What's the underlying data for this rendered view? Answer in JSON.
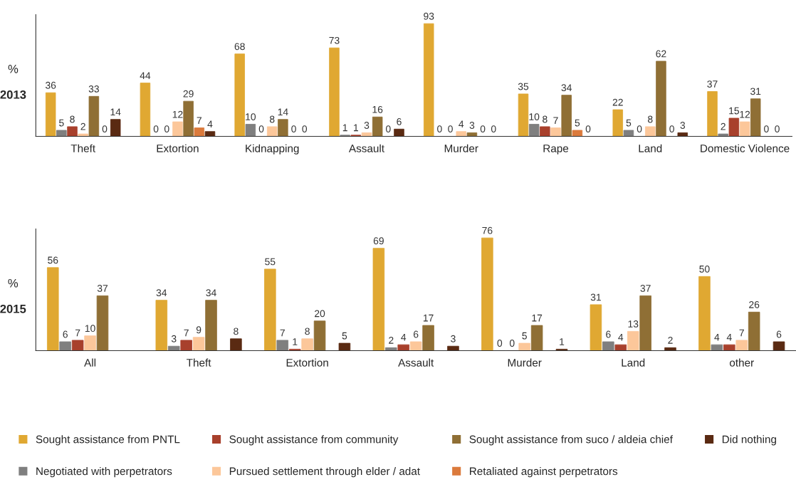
{
  "chart_data": [
    {
      "type": "bar",
      "title": "2013",
      "ylabel": "%",
      "categories": [
        "Theft",
        "Extortion",
        "Kidnapping",
        "Assault",
        "Murder",
        "Rape",
        "Land",
        "Domestic Violence"
      ],
      "data_labels": true,
      "legend": "bottom",
      "grid": false,
      "series": [
        {
          "name": "Sought assistance from PNTL",
          "color": "#e0a832",
          "values": [
            36,
            44,
            68,
            73,
            93,
            35,
            22,
            37
          ]
        },
        {
          "name": "Negotiated with perpetrators",
          "color": "#7f7f7f",
          "values": [
            5,
            0,
            10,
            1,
            0,
            10,
            5,
            2
          ]
        },
        {
          "name": "Sought assistance from community",
          "color": "#a8402c",
          "values": [
            8,
            0,
            0,
            1,
            0,
            8,
            0,
            15
          ]
        },
        {
          "name": "Pursued settlement through elder / adat",
          "color": "#fcc79a",
          "values": [
            2,
            12,
            8,
            3,
            4,
            7,
            8,
            12
          ]
        },
        {
          "name": "Sought assistance from suco / aldeia chief",
          "color": "#8f6f35",
          "values": [
            33,
            29,
            14,
            16,
            3,
            34,
            62,
            31
          ]
        },
        {
          "name": "Retaliated against perpetrators",
          "color": "#db7a3c",
          "values": [
            0,
            7,
            0,
            0,
            0,
            5,
            0,
            0
          ]
        },
        {
          "name": "Did nothing",
          "color": "#5a2a12",
          "values": [
            14,
            4,
            0,
            6,
            0,
            0,
            3,
            0
          ]
        }
      ]
    },
    {
      "type": "bar",
      "title": "2015",
      "ylabel": "%",
      "categories": [
        "All",
        "Theft",
        "Extortion",
        "Assault",
        "Murder",
        "Land",
        "other"
      ],
      "data_labels": true,
      "grid": false,
      "series": [
        {
          "color": "#e0a832",
          "values": [
            56,
            34,
            55,
            69,
            76,
            31,
            50
          ]
        },
        {
          "color": "#7f7f7f",
          "values": [
            6,
            3,
            7,
            2,
            0,
            6,
            4
          ]
        },
        {
          "color": "#a8402c",
          "values": [
            7,
            7,
            1,
            4,
            0,
            4,
            4
          ]
        },
        {
          "color": "#fcc79a",
          "values": [
            10,
            9,
            8,
            6,
            5,
            13,
            7
          ]
        },
        {
          "color": "#8f6f35",
          "values": [
            37,
            34,
            20,
            17,
            17,
            37,
            26
          ]
        },
        {
          "color": "#db7a3c",
          "values": [
            null,
            null,
            null,
            null,
            null,
            null,
            null
          ]
        },
        {
          "color": "#5a2a12",
          "values": [
            null,
            8,
            5,
            3,
            1,
            2,
            6
          ]
        }
      ]
    }
  ]
}
